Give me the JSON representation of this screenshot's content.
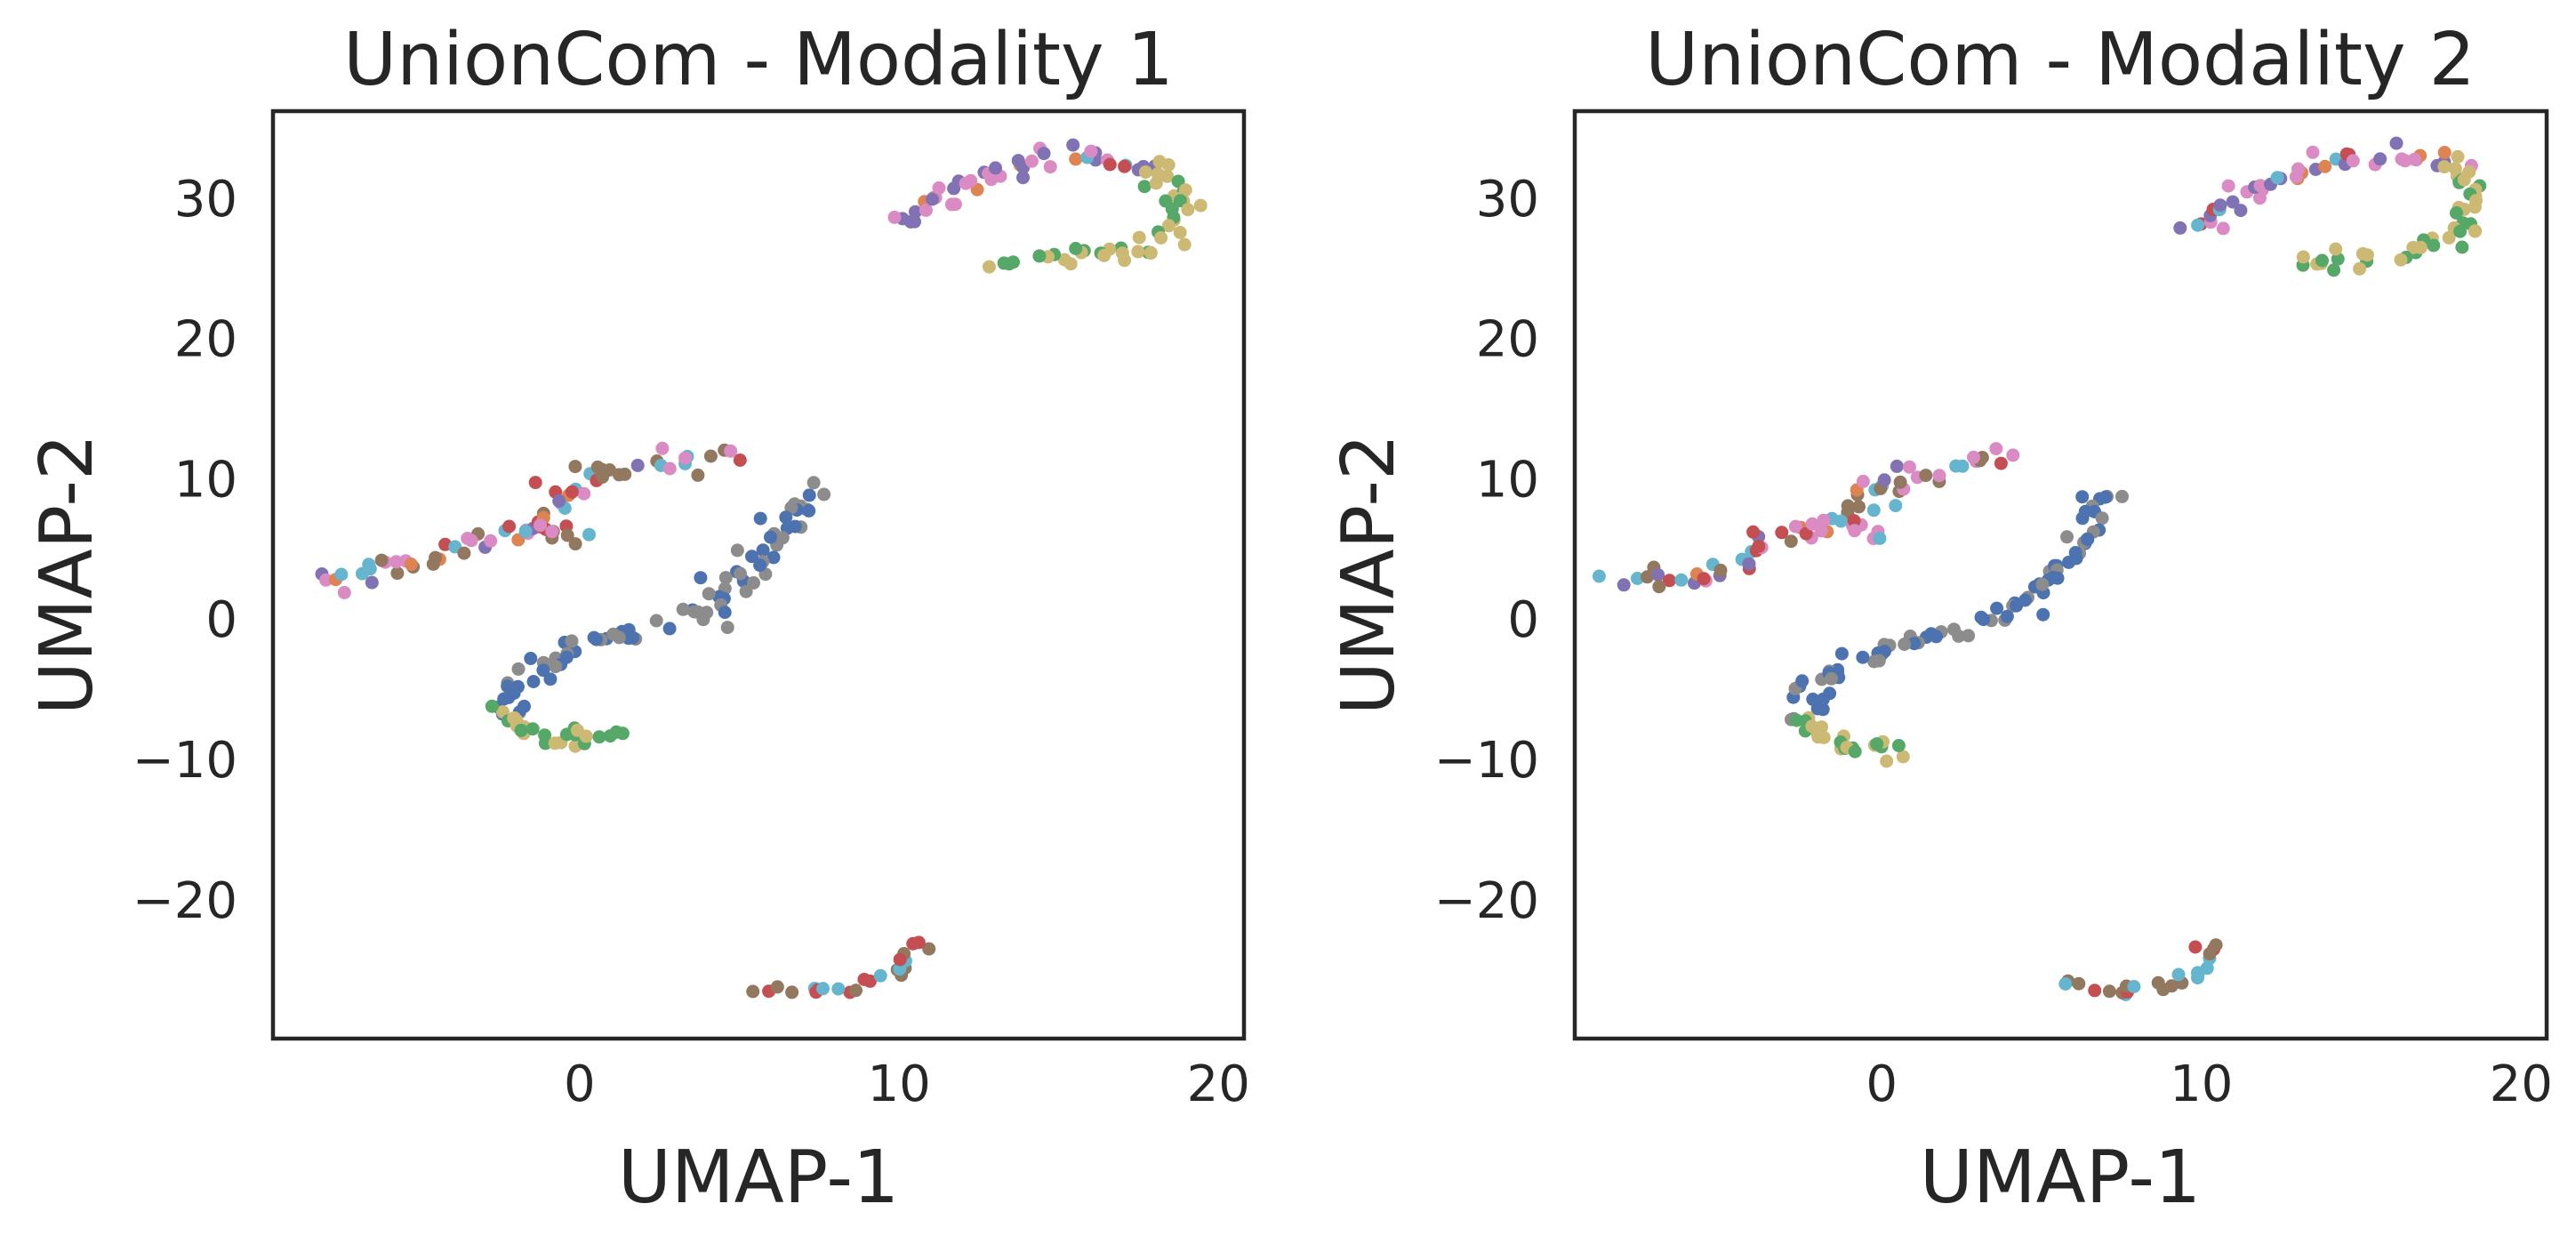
{
  "chart_data": [
    {
      "type": "scatter",
      "title": "UnionCom - Modality 1",
      "xlabel": "UMAP-1",
      "ylabel": "UMAP-2",
      "xlim": [
        -9.6,
        20.8
      ],
      "ylim": [
        -29.9,
        36.2
      ],
      "xticks": [
        {
          "value": 0,
          "label": "0"
        },
        {
          "value": 10,
          "label": "10"
        },
        {
          "value": 20,
          "label": "20"
        }
      ],
      "yticks": [
        {
          "value": 30,
          "label": "30"
        },
        {
          "value": 20,
          "label": "20"
        },
        {
          "value": 10,
          "label": "10"
        },
        {
          "value": 0,
          "label": "0"
        },
        {
          "value": -10,
          "label": "−10"
        },
        {
          "value": -20,
          "label": "−20"
        }
      ],
      "grid": false,
      "legend": "none",
      "palette": [
        "#4c72b0",
        "#dd8452",
        "#55a868",
        "#c44e52",
        "#8172b3",
        "#937860",
        "#da8bc3",
        "#8c8c8c",
        "#ccb974",
        "#64b5cd"
      ],
      "segments": [
        {
          "path": [
            [
              -8.1,
              3.0
            ],
            [
              -6.5,
              2.8
            ],
            [
              -4.8,
              4.0
            ],
            [
              -3.2,
              5.8
            ],
            [
              -1.6,
              6.7
            ],
            [
              -0.8,
              7.5
            ],
            [
              -0.4,
              9.5
            ],
            [
              0.8,
              10.5
            ],
            [
              2.8,
              11.0
            ],
            [
              4.7,
              11.8
            ]
          ],
          "n": 68,
          "jitter": [
            0.35,
            0.45
          ],
          "weights": [
            0,
            1,
            0,
            2,
            1,
            3,
            3,
            0,
            0,
            2
          ]
        },
        {
          "path": [
            [
              -1.5,
              6.5
            ],
            [
              -0.5,
              6.0
            ],
            [
              0.2,
              5.8
            ]
          ],
          "n": 10,
          "jitter": [
            0.3,
            0.35
          ],
          "weights": [
            0,
            0,
            0,
            3,
            0,
            3,
            1,
            0,
            0,
            1
          ]
        },
        {
          "path": [
            [
              7.2,
              9.1
            ],
            [
              6.3,
              6.0
            ],
            [
              5.2,
              3.2
            ],
            [
              4.2,
              0.6
            ],
            [
              2.4,
              -0.6
            ],
            [
              0.6,
              -1.3
            ],
            [
              -0.6,
              -2.4
            ],
            [
              -1.7,
              -4.3
            ],
            [
              -2.4,
              -6.5
            ]
          ],
          "n": 82,
          "jitter": [
            0.35,
            0.45
          ],
          "weights": [
            6,
            0,
            0,
            0,
            0,
            0,
            0,
            4,
            0,
            0
          ]
        },
        {
          "path": [
            [
              -2.4,
              -6.5
            ],
            [
              -1.7,
              -8.2
            ],
            [
              -0.6,
              -8.9
            ],
            [
              0.2,
              -8.3
            ],
            [
              1.4,
              -8.6
            ]
          ],
          "n": 26,
          "jitter": [
            0.3,
            0.35
          ],
          "weights": [
            0,
            0,
            4,
            0,
            0,
            0,
            0,
            0,
            4,
            0
          ]
        },
        {
          "path": [
            [
              10.1,
              28.3
            ],
            [
              12.0,
              31.0
            ],
            [
              14.0,
              32.5
            ],
            [
              16.0,
              33.0
            ],
            [
              17.8,
              32.4
            ]
          ],
          "n": 44,
          "jitter": [
            0.3,
            0.35
          ],
          "weights": [
            0,
            2,
            0,
            1,
            5,
            0,
            5,
            0,
            0,
            1
          ]
        },
        {
          "path": [
            [
              17.8,
              32.4
            ],
            [
              18.8,
              30.4
            ],
            [
              18.6,
              28.0
            ],
            [
              17.4,
              26.2
            ],
            [
              15.8,
              25.8
            ],
            [
              14.6,
              26.0
            ],
            [
              13.4,
              25.4
            ]
          ],
          "n": 48,
          "jitter": [
            0.3,
            0.35
          ],
          "weights": [
            0,
            0,
            3,
            0,
            0,
            0,
            0,
            0,
            5,
            0
          ]
        },
        {
          "path": [
            [
              5.8,
              -26.2
            ],
            [
              7.5,
              -26.5
            ],
            [
              9.4,
              -25.8
            ],
            [
              10.2,
              -24.5
            ],
            [
              10.6,
              -23.0
            ]
          ],
          "n": 24,
          "jitter": [
            0.3,
            0.3
          ],
          "weights": [
            0,
            0,
            0,
            2,
            0,
            3,
            0,
            0,
            0,
            3
          ]
        }
      ]
    },
    {
      "type": "scatter",
      "title": "UnionCom - Modality 2",
      "xlabel": "UMAP-1",
      "ylabel": "UMAP-2",
      "xlim": [
        -9.6,
        20.8
      ],
      "ylim": [
        -29.9,
        36.2
      ],
      "xticks": [
        {
          "value": 0,
          "label": "0"
        },
        {
          "value": 10,
          "label": "10"
        },
        {
          "value": 20,
          "label": "20"
        }
      ],
      "yticks": [
        {
          "value": 30,
          "label": "30"
        },
        {
          "value": 20,
          "label": "20"
        },
        {
          "value": 10,
          "label": "10"
        },
        {
          "value": 0,
          "label": "0"
        },
        {
          "value": -10,
          "label": "−10"
        },
        {
          "value": -20,
          "label": "−20"
        }
      ],
      "grid": false,
      "legend": "none",
      "palette": [
        "#4c72b0",
        "#dd8452",
        "#55a868",
        "#c44e52",
        "#8172b3",
        "#937860",
        "#da8bc3",
        "#8c8c8c",
        "#ccb974",
        "#64b5cd"
      ],
      "segments": [
        {
          "path": [
            [
              -8.1,
              3.0
            ],
            [
              -6.2,
              2.9
            ],
            [
              -4.8,
              3.8
            ],
            [
              -3.0,
              6.0
            ],
            [
              -1.4,
              7.0
            ],
            [
              -0.6,
              7.8
            ],
            [
              -0.3,
              9.5
            ],
            [
              0.8,
              10.4
            ],
            [
              2.6,
              10.9
            ],
            [
              4.1,
              11.9
            ]
          ],
          "n": 66,
          "jitter": [
            0.35,
            0.45
          ],
          "weights": [
            0,
            1,
            0,
            2,
            1,
            3,
            3,
            0,
            0,
            2
          ]
        },
        {
          "path": [
            [
              -1.4,
              7.0
            ],
            [
              -0.6,
              6.5
            ],
            [
              0.0,
              6.0
            ]
          ],
          "n": 8,
          "jitter": [
            0.3,
            0.3
          ],
          "weights": [
            0,
            0,
            0,
            1,
            0,
            1,
            2,
            0,
            0,
            2
          ]
        },
        {
          "path": [
            [
              7.0,
              9.0
            ],
            [
              6.2,
              6.0
            ],
            [
              5.4,
              3.2
            ],
            [
              4.2,
              0.5
            ],
            [
              2.0,
              -1.0
            ],
            [
              -0.2,
              -2.6
            ],
            [
              -1.5,
              -3.5
            ],
            [
              -2.3,
              -5.5
            ],
            [
              -2.4,
              -7.0
            ]
          ],
          "n": 82,
          "jitter": [
            0.35,
            0.45
          ],
          "weights": [
            6,
            0,
            0,
            0,
            0,
            0,
            0,
            4,
            0,
            0
          ]
        },
        {
          "path": [
            [
              -2.4,
              -7.0
            ],
            [
              -1.8,
              -8.4
            ],
            [
              -0.6,
              -9.1
            ],
            [
              0.6,
              -9.2
            ]
          ],
          "n": 24,
          "jitter": [
            0.3,
            0.35
          ],
          "weights": [
            0,
            0,
            4,
            0,
            0,
            0,
            0,
            0,
            4,
            0
          ]
        },
        {
          "path": [
            [
              9.8,
              27.6
            ],
            [
              11.7,
              30.8
            ],
            [
              13.8,
              32.4
            ],
            [
              16.0,
              33.0
            ],
            [
              18.0,
              32.5
            ]
          ],
          "n": 44,
          "jitter": [
            0.3,
            0.35
          ],
          "weights": [
            0,
            1,
            0,
            1,
            5,
            0,
            5,
            0,
            0,
            1
          ]
        },
        {
          "path": [
            [
              18.0,
              32.5
            ],
            [
              18.8,
              30.0
            ],
            [
              18.3,
              27.8
            ],
            [
              17.0,
              26.3
            ],
            [
              15.4,
              25.6
            ],
            [
              14.2,
              25.2
            ],
            [
              13.0,
              25.6
            ]
          ],
          "n": 46,
          "jitter": [
            0.3,
            0.35
          ],
          "weights": [
            0,
            0,
            3,
            0,
            0,
            0,
            0,
            0,
            5,
            0
          ]
        },
        {
          "path": [
            [
              5.8,
              -26.0
            ],
            [
              7.4,
              -26.6
            ],
            [
              9.2,
              -26.0
            ],
            [
              10.0,
              -24.8
            ],
            [
              10.2,
              -23.2
            ]
          ],
          "n": 24,
          "jitter": [
            0.3,
            0.3
          ],
          "weights": [
            0,
            0,
            0,
            2,
            0,
            3,
            0,
            0,
            0,
            3
          ]
        }
      ]
    }
  ]
}
